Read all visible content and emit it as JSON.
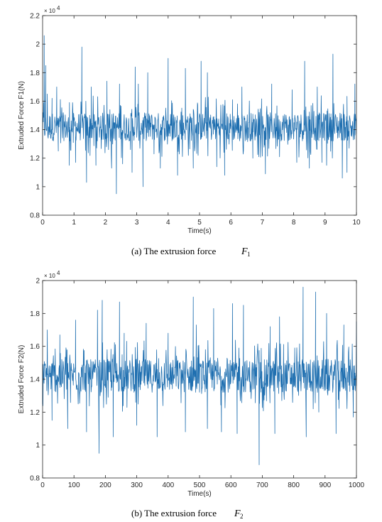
{
  "chart_data": [
    {
      "type": "line",
      "xlabel": "Time(s)",
      "ylabel": "Extruded Force F1(N)",
      "xlim": [
        0,
        10
      ],
      "ylim": [
        0.8,
        2.2
      ],
      "xticks": [
        "0",
        "1",
        "2",
        "3",
        "4",
        "5",
        "6",
        "7",
        "8",
        "9",
        "10"
      ],
      "yticks": [
        "0.8",
        "1",
        "1.2",
        "1.4",
        "1.6",
        "1.8",
        "2",
        "2.2"
      ],
      "y_multiplier": "× 10",
      "y_multiplier_exp": "4",
      "caption_prefix": "(a) The extrusion force",
      "caption_symbol": "F",
      "caption_sub": "1",
      "line_color": "#1f6fb0",
      "grid": false,
      "series": [
        {
          "x": [
            0,
            0.05,
            0.1,
            0.15,
            0.3,
            0.45,
            0.5,
            0.85,
            1.05,
            1.25,
            1.4,
            1.55,
            1.7,
            2.05,
            2.2,
            2.35,
            2.45,
            2.55,
            2.85,
            2.95,
            3.05,
            3.2,
            3.35,
            3.55,
            3.75,
            4.0,
            4.3,
            4.55,
            4.8,
            5.05,
            5.25,
            5.55,
            5.8,
            6.05,
            6.35,
            6.7,
            7.1,
            7.3,
            7.55,
            7.95,
            8.1,
            8.35,
            8.5,
            8.75,
            8.9,
            9.05,
            9.25,
            9.55,
            9.7,
            9.95
          ],
          "y": [
            1.0,
            2.06,
            1.85,
            1.65,
            1.62,
            1.7,
            1.25,
            1.15,
            1.17,
            1.98,
            1.03,
            1.7,
            1.15,
            1.74,
            1.13,
            0.95,
            1.72,
            1.16,
            1.1,
            1.84,
            1.72,
            1.0,
            1.8,
            1.23,
            1.13,
            1.9,
            1.08,
            1.83,
            1.13,
            1.88,
            1.8,
            1.14,
            1.08,
            1.61,
            1.7,
            1.2,
            1.09,
            1.72,
            1.21,
            1.68,
            1.17,
            1.88,
            1.13,
            1.7,
            1.17,
            1.15,
            1.93,
            1.06,
            1.1,
            1.72
          ]
        }
      ]
    },
    {
      "type": "line",
      "xlabel": "Time(s)",
      "ylabel": "Extruded Force F2(N)",
      "xlim": [
        0,
        1000
      ],
      "ylim": [
        0.8,
        2.0
      ],
      "xticks": [
        "0",
        "100",
        "200",
        "300",
        "400",
        "500",
        "600",
        "700",
        "800",
        "900",
        "1000"
      ],
      "yticks": [
        "0.8",
        "1",
        "1.2",
        "1.4",
        "1.6",
        "1.8",
        "2"
      ],
      "y_multiplier": "× 10",
      "y_multiplier_exp": "4",
      "caption_prefix": "(b) The extrusion force",
      "caption_symbol": "F",
      "caption_sub": "2",
      "line_color": "#1f6fb0",
      "grid": false,
      "series": [
        {
          "x": [
            0,
            15,
            30,
            55,
            80,
            105,
            140,
            175,
            180,
            190,
            225,
            245,
            260,
            300,
            330,
            365,
            400,
            455,
            480,
            490,
            525,
            545,
            570,
            605,
            620,
            640,
            690,
            725,
            740,
            755,
            830,
            840,
            870,
            880,
            905,
            935,
            960,
            990,
            1000
          ],
          "y": [
            1.25,
            1.7,
            1.15,
            1.67,
            1.1,
            1.76,
            1.08,
            1.82,
            0.95,
            1.88,
            1.05,
            1.87,
            1.68,
            1.12,
            1.74,
            1.05,
            1.68,
            1.08,
            1.9,
            1.73,
            1.1,
            1.83,
            1.08,
            1.86,
            1.07,
            1.85,
            0.88,
            1.72,
            1.07,
            1.78,
            1.96,
            1.05,
            1.93,
            1.2,
            1.8,
            1.07,
            1.73,
            1.17,
            1.75
          ]
        }
      ]
    }
  ]
}
